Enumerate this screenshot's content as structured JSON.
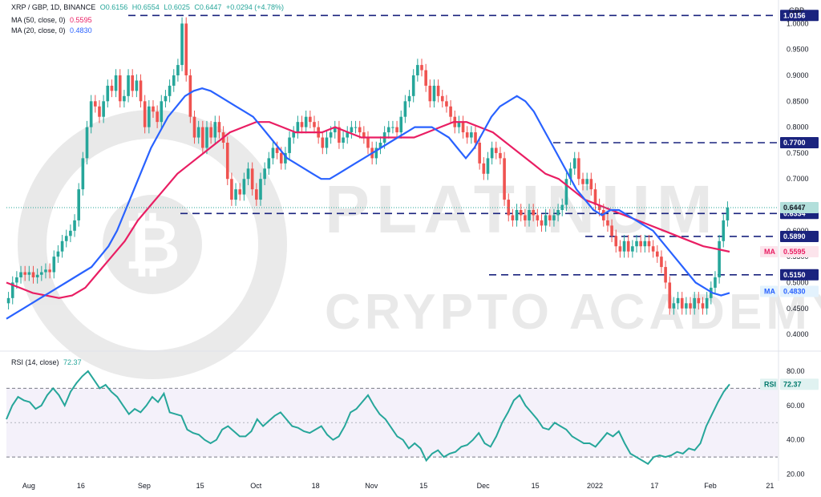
{
  "header": {
    "symbol": "XRP / GBP, 1D, BINANCE",
    "open": "O0.6156",
    "high": "H0.6554",
    "low": "L0.6025",
    "close": "C0.6447",
    "change": "+0.0294 (+4.78%)",
    "ma50_label": "MA (50, close, 0)",
    "ma50_value": "0.5595",
    "ma20_label": "MA (20, close, 0)",
    "ma20_value": "0.4830",
    "rsi_label": "RSI (14, close)",
    "rsi_value": "72.37",
    "currency": "GBP"
  },
  "watermark": {
    "line1": "PLATINUM",
    "line2": "CRYPTO ACADEMY"
  },
  "colors": {
    "up": "#26a69a",
    "down": "#ef5350",
    "ma50": "#e91e63",
    "ma20": "#2962ff",
    "rsi": "#26a69a",
    "level": "#1a237e",
    "rsi_band": "#e8e3f7"
  },
  "chart_data": {
    "type": "candlestick",
    "price_axis": {
      "ticks": [
        "1.0000",
        "0.9500",
        "0.9000",
        "0.8500",
        "0.8000",
        "0.7500",
        "0.7000",
        "0.6500",
        "0.6000",
        "0.5500",
        "0.5000",
        "0.4500",
        "0.4000"
      ],
      "tick_values": [
        1.0,
        0.95,
        0.9,
        0.85,
        0.8,
        0.75,
        0.7,
        0.65,
        0.6,
        0.55,
        0.5,
        0.45,
        0.4
      ]
    },
    "rsi_axis": {
      "ticks": [
        "80.00",
        "60.00",
        "40.00",
        "20.00"
      ],
      "tick_values": [
        80,
        60,
        40,
        20
      ],
      "band": [
        30,
        70
      ]
    },
    "x_axis": {
      "labels": [
        "Aug",
        "16",
        "Sep",
        "15",
        "Oct",
        "18",
        "Nov",
        "15",
        "Dec",
        "15",
        "2022",
        "17",
        "Feb",
        "21"
      ],
      "label_days": [
        6,
        20,
        37,
        52,
        67,
        83,
        98,
        112,
        128,
        142,
        158,
        174,
        189,
        205
      ]
    },
    "levels": [
      {
        "value": 1.0156,
        "label": "1.0156"
      },
      {
        "value": 0.77,
        "label": "0.7700"
      },
      {
        "value": 0.6334,
        "label": "0.6334"
      },
      {
        "value": 0.589,
        "label": "0.5890"
      },
      {
        "value": 0.515,
        "label": "0.5150"
      }
    ],
    "last_price": {
      "value": 0.6447,
      "label": "0.6447"
    },
    "ma50_last": {
      "value": 0.5595,
      "label": "0.5595",
      "tag": "MA"
    },
    "ma20_last": {
      "value": 0.483,
      "label": "0.4830",
      "tag": "MA"
    },
    "rsi_last": {
      "value": 72.37,
      "label": "72.37",
      "tag": "RSI"
    },
    "closes": [
      0.47,
      0.5,
      0.51,
      0.52,
      0.515,
      0.52,
      0.51,
      0.515,
      0.52,
      0.525,
      0.52,
      0.55,
      0.56,
      0.58,
      0.59,
      0.6,
      0.62,
      0.68,
      0.74,
      0.8,
      0.85,
      0.84,
      0.82,
      0.85,
      0.88,
      0.87,
      0.9,
      0.85,
      0.86,
      0.9,
      0.87,
      0.89,
      0.85,
      0.8,
      0.84,
      0.83,
      0.81,
      0.85,
      0.86,
      0.88,
      0.9,
      0.92,
      1.0,
      0.9,
      0.82,
      0.78,
      0.8,
      0.76,
      0.8,
      0.78,
      0.81,
      0.79,
      0.77,
      0.7,
      0.66,
      0.68,
      0.67,
      0.7,
      0.72,
      0.68,
      0.66,
      0.7,
      0.72,
      0.74,
      0.76,
      0.75,
      0.73,
      0.75,
      0.78,
      0.79,
      0.81,
      0.8,
      0.82,
      0.81,
      0.8,
      0.78,
      0.76,
      0.78,
      0.79,
      0.8,
      0.77,
      0.78,
      0.79,
      0.8,
      0.8,
      0.79,
      0.78,
      0.76,
      0.74,
      0.76,
      0.77,
      0.79,
      0.8,
      0.8,
      0.79,
      0.82,
      0.85,
      0.86,
      0.9,
      0.92,
      0.91,
      0.88,
      0.85,
      0.88,
      0.86,
      0.85,
      0.84,
      0.82,
      0.8,
      0.81,
      0.79,
      0.78,
      0.79,
      0.77,
      0.73,
      0.71,
      0.74,
      0.76,
      0.75,
      0.74,
      0.66,
      0.63,
      0.62,
      0.64,
      0.63,
      0.62,
      0.64,
      0.63,
      0.62,
      0.61,
      0.63,
      0.62,
      0.63,
      0.64,
      0.65,
      0.7,
      0.72,
      0.74,
      0.7,
      0.69,
      0.7,
      0.68,
      0.65,
      0.64,
      0.62,
      0.61,
      0.59,
      0.57,
      0.56,
      0.58,
      0.56,
      0.57,
      0.58,
      0.57,
      0.58,
      0.57,
      0.56,
      0.55,
      0.53,
      0.5,
      0.45,
      0.46,
      0.47,
      0.45,
      0.46,
      0.45,
      0.47,
      0.46,
      0.45,
      0.47,
      0.49,
      0.51,
      0.58,
      0.62,
      0.6447
    ],
    "ma20": [
      0.43,
      0.44,
      0.45,
      0.46,
      0.47,
      0.48,
      0.49,
      0.5,
      0.51,
      0.52,
      0.53,
      0.55,
      0.57,
      0.6,
      0.64,
      0.68,
      0.72,
      0.76,
      0.79,
      0.82,
      0.84,
      0.86,
      0.87,
      0.875,
      0.87,
      0.86,
      0.85,
      0.84,
      0.83,
      0.82,
      0.8,
      0.78,
      0.76,
      0.74,
      0.73,
      0.72,
      0.71,
      0.7,
      0.7,
      0.71,
      0.72,
      0.73,
      0.74,
      0.75,
      0.76,
      0.77,
      0.78,
      0.79,
      0.8,
      0.8,
      0.8,
      0.79,
      0.78,
      0.76,
      0.74,
      0.76,
      0.79,
      0.82,
      0.84,
      0.85,
      0.86,
      0.85,
      0.83,
      0.8,
      0.77,
      0.74,
      0.71,
      0.68,
      0.66,
      0.64,
      0.63,
      0.64,
      0.64,
      0.63,
      0.62,
      0.61,
      0.6,
      0.58,
      0.56,
      0.54,
      0.52,
      0.5,
      0.49,
      0.48,
      0.475,
      0.48
    ],
    "ma50": [
      0.5,
      0.49,
      0.48,
      0.475,
      0.47,
      0.475,
      0.49,
      0.52,
      0.55,
      0.58,
      0.62,
      0.65,
      0.68,
      0.71,
      0.73,
      0.75,
      0.77,
      0.79,
      0.8,
      0.81,
      0.81,
      0.8,
      0.79,
      0.79,
      0.79,
      0.8,
      0.79,
      0.78,
      0.78,
      0.78,
      0.78,
      0.78,
      0.79,
      0.8,
      0.81,
      0.81,
      0.8,
      0.79,
      0.77,
      0.75,
      0.73,
      0.71,
      0.7,
      0.68,
      0.66,
      0.65,
      0.64,
      0.63,
      0.62,
      0.61,
      0.6,
      0.59,
      0.58,
      0.57,
      0.565,
      0.5595
    ],
    "rsi": [
      52,
      60,
      65,
      63,
      62,
      58,
      60,
      66,
      70,
      66,
      60,
      68,
      73,
      77,
      80,
      75,
      70,
      72,
      68,
      65,
      60,
      55,
      58,
      56,
      60,
      65,
      62,
      67,
      56,
      55,
      54,
      46,
      44,
      43,
      40,
      38,
      40,
      46,
      48,
      45,
      42,
      42,
      45,
      52,
      48,
      51,
      54,
      56,
      52,
      48,
      47,
      45,
      44,
      46,
      48,
      43,
      40,
      42,
      48,
      56,
      58,
      62,
      66,
      60,
      55,
      52,
      47,
      42,
      40,
      35,
      38,
      35,
      28,
      32,
      34,
      30,
      32,
      33,
      36,
      37,
      40,
      44,
      38,
      36,
      42,
      50,
      56,
      63,
      66,
      60,
      56,
      52,
      47,
      46,
      50,
      48,
      46,
      42,
      40,
      38,
      38,
      36,
      40,
      44,
      42,
      45,
      38,
      32,
      30,
      28,
      26,
      30,
      31,
      30,
      31,
      33,
      32,
      35,
      34,
      38,
      48,
      55,
      62,
      68,
      72.37
    ]
  }
}
